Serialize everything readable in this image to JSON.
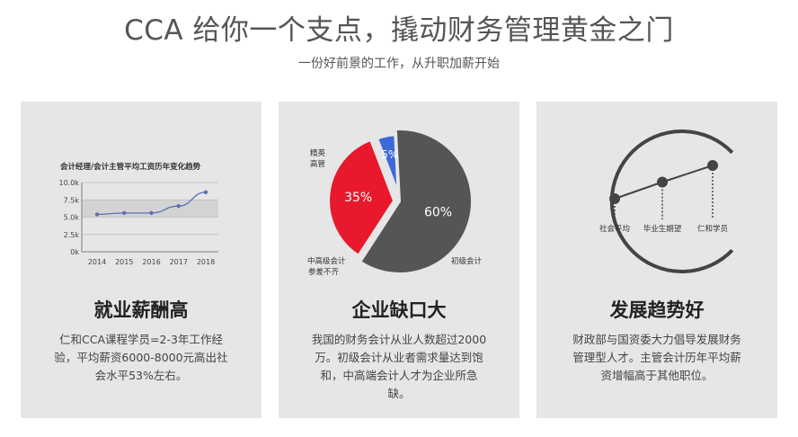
{
  "header": {
    "title": "CCA 给你一个支点，撬动财务管理黄金之门",
    "subtitle": "一份好前景的工作，从升职加薪开始"
  },
  "cards": [
    {
      "title": "就业薪酬高",
      "desc_lines": [
        "仁和CCA课程学员=2-3年工作经",
        "验，平均薪资6000-8000元高出社",
        "会水平53%左右。"
      ]
    },
    {
      "title": "企业缺口大",
      "desc_lines": [
        "我国的财务会计从业人数超过2000",
        "万。初级会计从业者需求量达到饱",
        "和，中高端会计人才为企业所急",
        "缺。"
      ]
    },
    {
      "title": "发展趋势好",
      "desc_lines": [
        "财政部与国资委大力倡导发展财务",
        "管理型人才。主管会计历年平均薪",
        "资增幅高于其他职位。"
      ]
    }
  ],
  "chart_data": [
    {
      "type": "line",
      "title": "会计经理/会计主管平均工资历年变化趋势",
      "x": [
        "2014",
        "2015",
        "2016",
        "2017",
        "2018"
      ],
      "y_ticks": [
        "0k",
        "2.5k",
        "5.0k",
        "7.5k",
        "10.0k"
      ],
      "ylim": [
        0,
        10.0
      ],
      "series": [
        {
          "values": [
            5.4,
            5.6,
            5.6,
            6.6,
            8.6
          ]
        }
      ],
      "colors": {
        "line": "#5b6fb5",
        "band": "#d3d3d3"
      }
    },
    {
      "type": "pie",
      "slices": [
        {
          "label": "初级会计",
          "percent_label": "60%",
          "value": 60,
          "color": "#555555"
        },
        {
          "label_lines": [
            "中高级会计",
            "参差不齐"
          ],
          "percent_label": "35%",
          "value": 35,
          "color": "#e8192c"
        },
        {
          "label_lines": [
            "精英",
            "高管"
          ],
          "percent_label": "5%",
          "value": 5,
          "color": "#3d68d8"
        }
      ]
    },
    {
      "type": "line",
      "categories": [
        "社会平均",
        "毕业生期望",
        "仁和学员"
      ],
      "values": [
        1,
        2,
        3
      ]
    }
  ]
}
